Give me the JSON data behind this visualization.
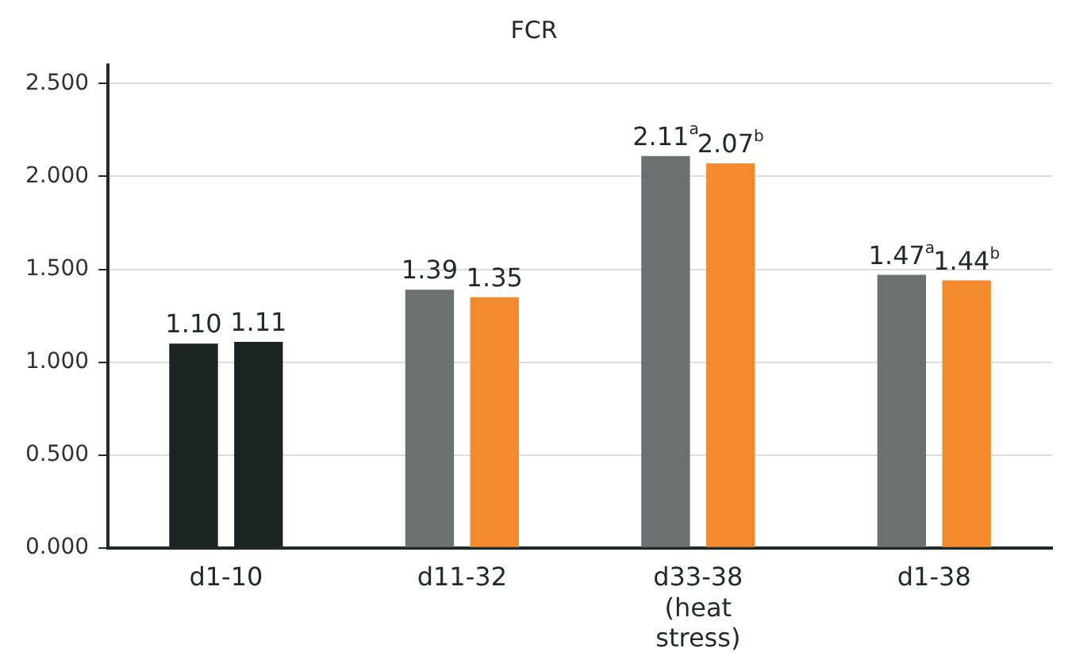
{
  "chart_data": {
    "type": "bar",
    "title": "FCR",
    "categories": [
      "d1-10",
      "d11-32",
      "d33-38 (heat stress)",
      "d1-38"
    ],
    "series": [
      {
        "colors": [
          "#1a2523",
          "#6b7170",
          "#6b7170",
          "#6b7170"
        ],
        "values": [
          1.1,
          1.39,
          2.11,
          1.47
        ],
        "value_labels": [
          "1.10",
          "1.39",
          "2.11$^{a}$",
          "1.47$^{a}$"
        ]
      },
      {
        "colors": [
          "#1a2523",
          "#f38a2e",
          "#f38a2e",
          "#f38a2e"
        ],
        "values": [
          1.11,
          1.35,
          2.07,
          1.44
        ],
        "value_labels": [
          "1.11",
          "1.35",
          "2.07$^{b}$",
          "1.44$^{b}$"
        ]
      }
    ],
    "ylim": [
      0,
      2.6
    ],
    "yticks": [
      {
        "value": 0,
        "label": "0.000"
      },
      {
        "value": 0.5,
        "label": "0.500"
      },
      {
        "value": 1,
        "label": "1.000"
      },
      {
        "value": 1.5,
        "label": "1.500"
      },
      {
        "value": 2,
        "label": "2.000"
      },
      {
        "value": 2.5,
        "label": "2.500"
      }
    ],
    "grid": "y",
    "legend": false
  }
}
